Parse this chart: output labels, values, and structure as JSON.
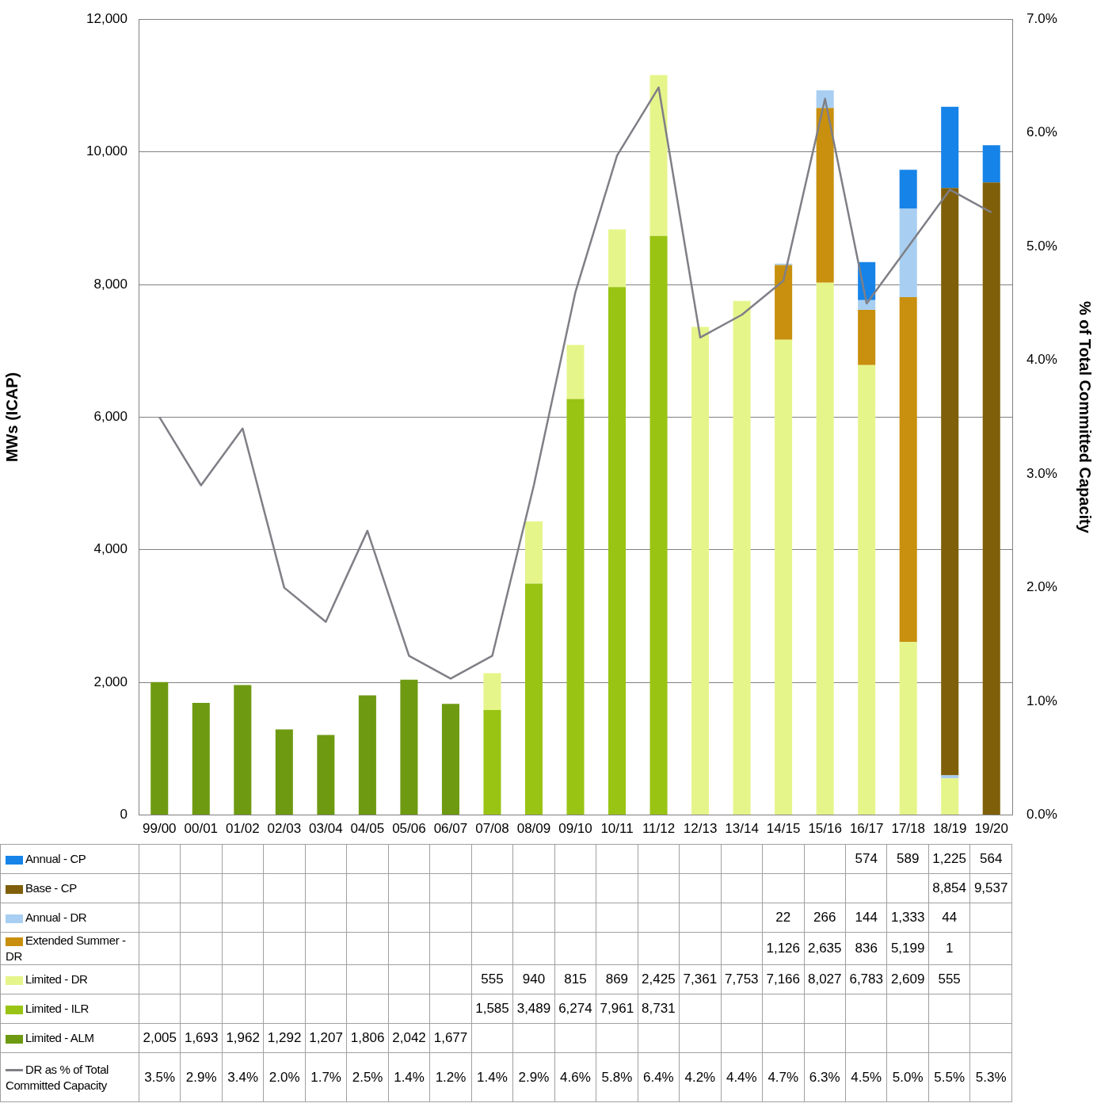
{
  "chart_data": {
    "type": "bar",
    "stacked": true,
    "ylabel": "MWs (ICAP)",
    "y2label": "% of Total Committed Capacity",
    "categories": [
      "99/00",
      "00/01",
      "01/02",
      "02/03",
      "03/04",
      "04/05",
      "05/06",
      "06/07",
      "07/08",
      "08/09",
      "09/10",
      "10/11",
      "11/12",
      "12/13",
      "13/14",
      "14/15",
      "15/16",
      "16/17",
      "17/18",
      "18/19",
      "19/20"
    ],
    "series": [
      {
        "name": "Limited - ALM",
        "color": "#6e9a12",
        "values": [
          2005,
          1693,
          1962,
          1292,
          1207,
          1806,
          2042,
          1677,
          null,
          null,
          null,
          null,
          null,
          null,
          null,
          null,
          null,
          null,
          null,
          null,
          null
        ],
        "value_labels": [
          "2,005",
          "1,693",
          "1,962",
          "1,292",
          "1,207",
          "1,806",
          "2,042",
          "1,677",
          null,
          null,
          null,
          null,
          null,
          null,
          null,
          null,
          null,
          null,
          null,
          null,
          null
        ]
      },
      {
        "name": "Limited - ILR",
        "color": "#99c414",
        "values": [
          null,
          null,
          null,
          null,
          null,
          null,
          null,
          null,
          1585,
          3489,
          6274,
          7961,
          8731,
          null,
          null,
          null,
          null,
          null,
          null,
          null,
          null
        ],
        "value_labels": [
          null,
          null,
          null,
          null,
          null,
          null,
          null,
          null,
          "1,585",
          "3,489",
          "6,274",
          "7,961",
          "8,731",
          null,
          null,
          null,
          null,
          null,
          null,
          null,
          null
        ]
      },
      {
        "name": "Limited - DR",
        "color": "#e6f58a",
        "values": [
          null,
          null,
          null,
          null,
          null,
          null,
          null,
          null,
          555,
          940,
          815,
          869,
          2425,
          7361,
          7753,
          7166,
          8027,
          6783,
          2609,
          555,
          null
        ],
        "value_labels": [
          null,
          null,
          null,
          null,
          null,
          null,
          null,
          null,
          "555",
          "940",
          "815",
          "869",
          "2,425",
          "7,361",
          "7,753",
          "7,166",
          "8,027",
          "6,783",
          "2,609",
          "555",
          null
        ]
      },
      {
        "name": "Extended Summer - DR",
        "color": "#c8900e",
        "values": [
          null,
          null,
          null,
          null,
          null,
          null,
          null,
          null,
          null,
          null,
          null,
          null,
          null,
          null,
          null,
          1126,
          2635,
          836,
          5199,
          1,
          null
        ],
        "value_labels": [
          null,
          null,
          null,
          null,
          null,
          null,
          null,
          null,
          null,
          null,
          null,
          null,
          null,
          null,
          null,
          "1,126",
          "2,635",
          "836",
          "5,199",
          "1",
          null
        ]
      },
      {
        "name": "Annual - DR",
        "color": "#a8cff2",
        "values": [
          null,
          null,
          null,
          null,
          null,
          null,
          null,
          null,
          null,
          null,
          null,
          null,
          null,
          null,
          null,
          22,
          266,
          144,
          1333,
          44,
          null
        ],
        "value_labels": [
          null,
          null,
          null,
          null,
          null,
          null,
          null,
          null,
          null,
          null,
          null,
          null,
          null,
          null,
          null,
          "22",
          "266",
          "144",
          "1,333",
          "44",
          null
        ]
      },
      {
        "name": "Base - CP",
        "color": "#7f5f0a",
        "values": [
          null,
          null,
          null,
          null,
          null,
          null,
          null,
          null,
          null,
          null,
          null,
          null,
          null,
          null,
          null,
          null,
          null,
          null,
          null,
          8854,
          9537
        ],
        "value_labels": [
          null,
          null,
          null,
          null,
          null,
          null,
          null,
          null,
          null,
          null,
          null,
          null,
          null,
          null,
          null,
          null,
          null,
          null,
          null,
          "8,854",
          "9,537"
        ]
      },
      {
        "name": "Annual - CP",
        "color": "#1683e8",
        "values": [
          null,
          null,
          null,
          null,
          null,
          null,
          null,
          null,
          null,
          null,
          null,
          null,
          null,
          null,
          null,
          null,
          null,
          574,
          589,
          1225,
          564
        ],
        "value_labels": [
          null,
          null,
          null,
          null,
          null,
          null,
          null,
          null,
          null,
          null,
          null,
          null,
          null,
          null,
          null,
          null,
          null,
          "574",
          "589",
          "1,225",
          "564"
        ]
      },
      {
        "name": "DR as % of Total Committed Capacity",
        "type": "line",
        "axis": "y2",
        "color": "#7f7f87",
        "line_style": "solid",
        "values": [
          3.5,
          2.9,
          3.4,
          2.0,
          1.7,
          2.5,
          1.4,
          1.2,
          1.4,
          2.9,
          4.6,
          5.8,
          6.4,
          4.2,
          4.4,
          4.7,
          6.3,
          4.5,
          5.0,
          5.5,
          5.3
        ],
        "value_labels": [
          "3.5%",
          "2.9%",
          "3.4%",
          "2.0%",
          "1.7%",
          "2.5%",
          "1.4%",
          "1.2%",
          "1.4%",
          "2.9%",
          "4.6%",
          "5.8%",
          "6.4%",
          "4.2%",
          "4.4%",
          "4.7%",
          "6.3%",
          "4.5%",
          "5.0%",
          "5.5%",
          "5.3%"
        ]
      }
    ],
    "ylim": [
      0,
      12000
    ],
    "yticks": [
      {
        "value": 0,
        "label": "0"
      },
      {
        "value": 2000,
        "label": "2,000"
      },
      {
        "value": 4000,
        "label": "4,000"
      },
      {
        "value": 6000,
        "label": "6,000"
      },
      {
        "value": 8000,
        "label": "8,000"
      },
      {
        "value": 10000,
        "label": "10,000"
      },
      {
        "value": 12000,
        "label": "12,000"
      }
    ],
    "y2lim": [
      0,
      7
    ],
    "y2ticks": [
      {
        "value": 0,
        "label": "0.0%"
      },
      {
        "value": 1,
        "label": "1.0%"
      },
      {
        "value": 2,
        "label": "2.0%"
      },
      {
        "value": 3,
        "label": "3.0%"
      },
      {
        "value": 4,
        "label": "4.0%"
      },
      {
        "value": 5,
        "label": "5.0%"
      },
      {
        "value": 6,
        "label": "6.0%"
      },
      {
        "value": 7,
        "label": "7.0%"
      }
    ],
    "grid": "y",
    "legend": "bottom",
    "marker": "none"
  }
}
